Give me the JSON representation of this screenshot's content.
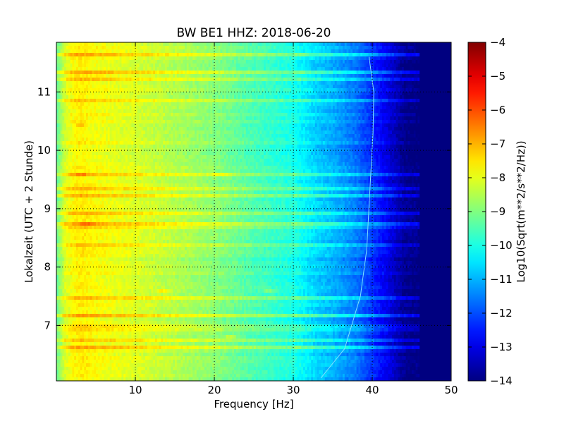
{
  "chart_data": {
    "type": "heatmap",
    "title": "BW BE1 HHZ: 2018-06-20",
    "xlabel": "Frequency [Hz]",
    "ylabel": "Lokalzeit (UTC + 2 Stunde)",
    "colorbar_label": "Log10(Sqrt(m**2/s**2/Hz))",
    "colormap": "jet",
    "xlim": [
      0,
      50
    ],
    "ylim": [
      11.85,
      6.05
    ],
    "x_ticks": [
      10,
      20,
      30,
      40,
      50
    ],
    "y_ticks": [
      7,
      8,
      9,
      10,
      11
    ],
    "color_range": [
      -14,
      -4
    ],
    "colorbar_ticks": [
      -4,
      -5,
      -6,
      -7,
      -8,
      -9,
      -10,
      -11,
      -12,
      -13,
      -14
    ],
    "grid": true,
    "spectral_profile": {
      "frequency_hz": [
        0,
        1,
        2,
        3,
        5,
        8,
        10,
        15,
        20,
        25,
        30,
        33,
        35,
        38,
        40,
        42,
        44,
        46,
        50
      ],
      "level": [
        -9.3,
        -8.2,
        -7.8,
        -7.6,
        -7.8,
        -8.0,
        -8.1,
        -8.5,
        -8.9,
        -9.5,
        -10.0,
        -10.7,
        -11.0,
        -11.6,
        -12.3,
        -13.0,
        -13.8,
        -14.0,
        -14.0
      ]
    },
    "instrument_line": {
      "label": "~40 Hz tonal line drifting in time",
      "points": [
        [
          33.5,
          6.1
        ],
        [
          36.5,
          6.6
        ],
        [
          38.5,
          7.5
        ],
        [
          39.3,
          8.3
        ],
        [
          39.7,
          9.3
        ],
        [
          40.1,
          10.3
        ],
        [
          40.2,
          11.0
        ],
        [
          39.6,
          11.6
        ]
      ]
    },
    "bright_events": [
      {
        "hour": 6.8,
        "frequency_hz": 22
      },
      {
        "hour": 7.6,
        "frequency_hz": 13.5
      },
      {
        "hour": 7.6,
        "frequency_hz": 27
      },
      {
        "hour": 8.75,
        "frequency_hz": 4
      },
      {
        "hour": 9.6,
        "frequency_hz": 3
      },
      {
        "hour": 9.6,
        "frequency_hz": 21
      },
      {
        "hour": 10.45,
        "frequency_hz": 3
      }
    ]
  }
}
